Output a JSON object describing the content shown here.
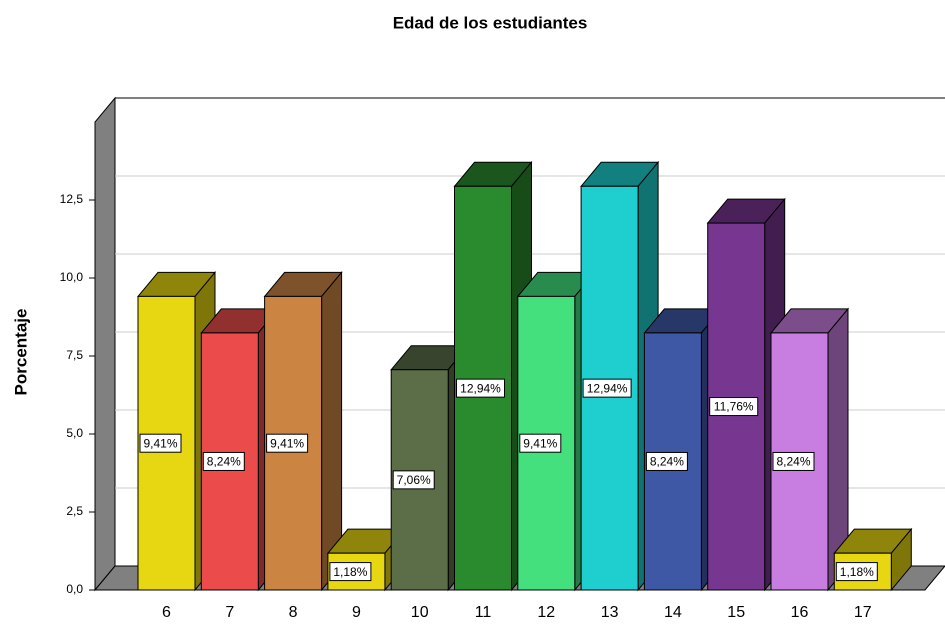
{
  "chart_data": {
    "type": "bar3d",
    "title": "Edad de los estudiantes",
    "y_label": "Porcentaje",
    "categories": [
      "6",
      "7",
      "8",
      "9",
      "10",
      "11",
      "12",
      "13",
      "14",
      "15",
      "16",
      "17"
    ],
    "values": [
      9.41,
      8.24,
      9.41,
      1.18,
      7.06,
      12.94,
      9.41,
      12.94,
      8.24,
      11.76,
      8.24,
      1.18
    ],
    "value_labels": [
      "9,41%",
      "8,24%",
      "9,41%",
      "1,18%",
      "7,06%",
      "12,94%",
      "9,41%",
      "12,94%",
      "8,24%",
      "11,76%",
      "8,24%",
      "1,18%"
    ],
    "colors": [
      "#e6d712",
      "#ec4b4b",
      "#cc8443",
      "#e6d712",
      "#5b6e48",
      "#2a8a2e",
      "#43e07d",
      "#1fcfcf",
      "#3f58a6",
      "#773790",
      "#c77ee0",
      "#e6d712"
    ],
    "ylim": [
      0,
      15
    ],
    "yticks": [
      {
        "value": 0,
        "label": "0,0"
      },
      {
        "value": 2.5,
        "label": "2,5"
      },
      {
        "value": 5,
        "label": "5,0"
      },
      {
        "value": 7.5,
        "label": "7,5"
      },
      {
        "value": 10,
        "label": "10,0"
      },
      {
        "value": 12.5,
        "label": "12,5"
      }
    ],
    "grid": true
  }
}
